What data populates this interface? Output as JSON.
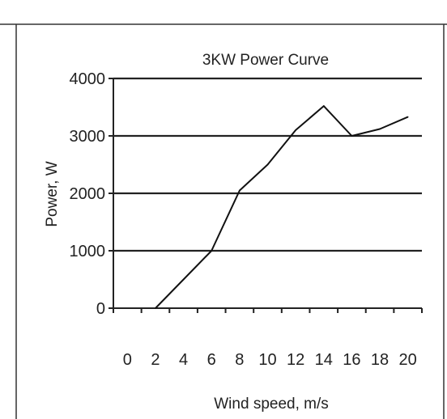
{
  "chart_data": {
    "type": "line",
    "title": "3KW Power Curve",
    "xlabel": "Wind speed, m/s",
    "ylabel": "Power, W",
    "x_ticks": [
      0,
      2,
      4,
      6,
      8,
      10,
      12,
      14,
      16,
      18,
      20
    ],
    "y_ticks": [
      0,
      1000,
      2000,
      3000,
      4000
    ],
    "xlim": [
      -1,
      21
    ],
    "ylim": [
      0,
      4000
    ],
    "grid": "horizontal",
    "series": [
      {
        "color": "#111111",
        "points": [
          [
            2,
            0
          ],
          [
            4,
            500
          ],
          [
            6,
            1000
          ],
          [
            8,
            2050
          ],
          [
            10,
            2500
          ],
          [
            12,
            3100
          ],
          [
            14,
            3520
          ],
          [
            16,
            3000
          ],
          [
            18,
            3120
          ],
          [
            20,
            3330
          ]
        ]
      }
    ]
  }
}
